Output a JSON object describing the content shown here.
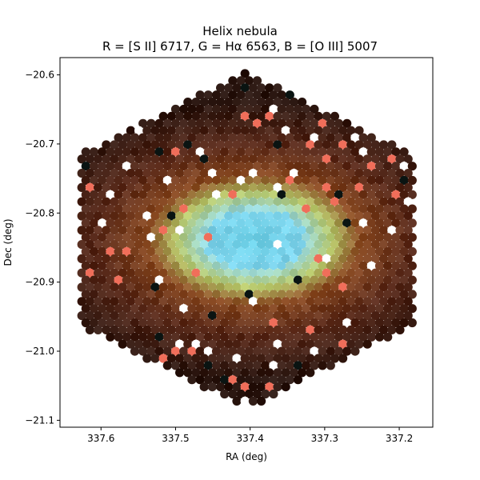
{
  "title_line1": "Helix nebula",
  "title_line2": "R = [S II] 6717, G = Hα 6563, B = [O III] 5007",
  "chart_data": {
    "type": "scatter",
    "title": "Helix nebula\nR = [S II] 6717, G = Hα 6563, B = [O III] 5007",
    "xlabel": "RA (deg)",
    "ylabel": "Dec (deg)",
    "xlim": [
      337.655,
      337.155
    ],
    "ylim": [
      -21.11,
      -20.575
    ],
    "x_inverted": true,
    "xticks": [
      "337.6",
      "337.5",
      "337.4",
      "337.3",
      "337.2"
    ],
    "yticks": [
      "-20.6",
      "-20.7",
      "-20.8",
      "-20.9",
      "-21.0",
      "-21.1"
    ],
    "footprint": "hexagon",
    "center": {
      "ra": 337.41,
      "dec": -20.84
    },
    "colors": {
      "shell": "#5a2a1a",
      "halo": "#8a4a22",
      "ring": "#b8c86a",
      "core": "#6fd3ea",
      "background_spaxel": "#2a1610"
    }
  }
}
